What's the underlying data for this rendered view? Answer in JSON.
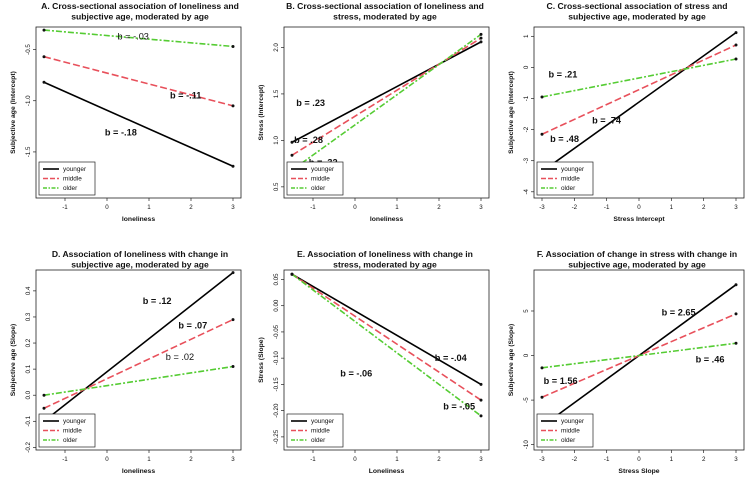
{
  "colors": {
    "younger": "#000000",
    "middle": "#e8505b",
    "older": "#55cc33"
  },
  "chart_data": [
    {
      "type": "line",
      "title": [
        "A. Cross-sectional association of loneliness and",
        "subjective age, moderated by age"
      ],
      "xlabel": "loneliness",
      "ylabel": "Subjective age (Intercept)",
      "xlim": [
        -1.5,
        3
      ],
      "ylim": [
        -1.95,
        -0.28
      ],
      "xticks": [
        "-1",
        "0",
        "1",
        "2",
        "3"
      ],
      "xtickvals": [
        -1,
        0,
        1,
        2,
        3
      ],
      "yticks": [
        "-0.5",
        "-1.0",
        "-1.5"
      ],
      "ytickvals": [
        -0.5,
        -1.0,
        -1.5
      ],
      "x": [
        -1.5,
        3
      ],
      "series": [
        {
          "name": "younger",
          "values": [
            -0.82,
            -1.64
          ]
        },
        {
          "name": "middle",
          "values": [
            -0.57,
            -1.05
          ]
        },
        {
          "name": "older",
          "values": [
            -0.31,
            -0.47
          ]
        }
      ],
      "annotations": [
        {
          "text": "b = -.03",
          "x": 0.25,
          "y": -0.4,
          "bold": false
        },
        {
          "text": "b = -.11",
          "x": 1.5,
          "y": -0.98,
          "bold": true
        },
        {
          "text": "b = -.18",
          "x": -0.05,
          "y": -1.34,
          "bold": true
        }
      ],
      "legend": [
        "younger",
        "middle",
        "older"
      ]
    },
    {
      "type": "line",
      "title": [
        "B. Cross-sectional association of loneliness and",
        "stress, moderated by age"
      ],
      "xlabel": "loneliness",
      "ylabel": "Stress (Intercept)",
      "xlim": [
        -1.5,
        3
      ],
      "ylim": [
        0.38,
        2.22
      ],
      "xticks": [
        "-1",
        "0",
        "1",
        "2",
        "3"
      ],
      "xtickvals": [
        -1,
        0,
        1,
        2,
        3
      ],
      "yticks": [
        "0.5",
        "1.0",
        "1.5",
        "2.0"
      ],
      "ytickvals": [
        0.5,
        1.0,
        1.5,
        2.0
      ],
      "x": [
        -1.5,
        3
      ],
      "series": [
        {
          "name": "younger",
          "values": [
            0.98,
            2.06
          ]
        },
        {
          "name": "middle",
          "values": [
            0.84,
            2.1
          ]
        },
        {
          "name": "older",
          "values": [
            0.68,
            2.14
          ]
        }
      ],
      "annotations": [
        {
          "text": "b = .23",
          "x": -1.4,
          "y": 1.37,
          "bold": true
        },
        {
          "text": "b = .28",
          "x": -1.45,
          "y": 0.97,
          "bold": true
        },
        {
          "text": "b = .32",
          "x": -1.1,
          "y": 0.73,
          "bold": true
        }
      ],
      "legend": [
        "younger",
        "middle",
        "older"
      ]
    },
    {
      "type": "line",
      "title": [
        "C. Cross-sectional association of stress and",
        "subjective age, moderated by age"
      ],
      "xlabel": "Stress Intercept",
      "ylabel": "Subjective age (Intercept)",
      "xlim": [
        -3,
        3
      ],
      "ylim": [
        -4.2,
        1.3
      ],
      "xticks": [
        "-3",
        "-2",
        "-1",
        "0",
        "1",
        "2",
        "3"
      ],
      "xtickvals": [
        -3,
        -2,
        -1,
        0,
        1,
        2,
        3
      ],
      "yticks": [
        "1",
        "0",
        "-1",
        "-2",
        "-3",
        "-4"
      ],
      "ytickvals": [
        1,
        0,
        -1,
        -2,
        -3,
        -4
      ],
      "x": [
        -3,
        3
      ],
      "series": [
        {
          "name": "younger",
          "values": [
            -3.35,
            1.12
          ]
        },
        {
          "name": "middle",
          "values": [
            -2.15,
            0.72
          ]
        },
        {
          "name": "older",
          "values": [
            -0.95,
            0.27
          ]
        }
      ],
      "annotations": [
        {
          "text": "b = .21",
          "x": -2.8,
          "y": -0.32,
          "bold": true
        },
        {
          "text": "b = .48",
          "x": -2.75,
          "y": -2.4,
          "bold": true
        },
        {
          "text": "b = .74",
          "x": -1.45,
          "y": -1.8,
          "bold": true
        }
      ],
      "legend": [
        "younger",
        "middle",
        "older"
      ]
    },
    {
      "type": "line",
      "title": [
        "D. Association of loneliness with change in",
        "subjective age, moderated by age"
      ],
      "xlabel": "loneliness",
      "ylabel": "Subjective age (Slope)",
      "xlim": [
        -1.5,
        3
      ],
      "ylim": [
        -0.21,
        0.48
      ],
      "xticks": [
        "-1",
        "0",
        "1",
        "2",
        "3"
      ],
      "xtickvals": [
        -1,
        0,
        1,
        2,
        3
      ],
      "yticks": [
        "-0.2",
        "-0.1",
        "0.0",
        "0.1",
        "0.2",
        "0.3",
        "0.4"
      ],
      "ytickvals": [
        -0.2,
        -0.1,
        0.0,
        0.1,
        0.2,
        0.3,
        0.4
      ],
      "x": [
        -1.5,
        3
      ],
      "series": [
        {
          "name": "younger",
          "values": [
            -0.1,
            0.47
          ]
        },
        {
          "name": "middle",
          "values": [
            -0.05,
            0.29
          ]
        },
        {
          "name": "older",
          "values": [
            0.0,
            0.11
          ]
        }
      ],
      "annotations": [
        {
          "text": "b = .12",
          "x": 0.85,
          "y": 0.35,
          "bold": true
        },
        {
          "text": "b = .07",
          "x": 1.7,
          "y": 0.255,
          "bold": true
        },
        {
          "text": "b = .02",
          "x": 1.4,
          "y": 0.135,
          "bold": false
        }
      ],
      "legend": [
        "younger",
        "middle",
        "older"
      ]
    },
    {
      "type": "line",
      "title": [
        "E. Association of loneliness with change in",
        "stress, moderated by age"
      ],
      "xlabel": "Loneliness",
      "ylabel": "Stress (Slope)",
      "xlim": [
        -1.5,
        3
      ],
      "ylim": [
        -0.275,
        0.068
      ],
      "xticks": [
        "-1",
        "0",
        "1",
        "2",
        "3"
      ],
      "xtickvals": [
        -1,
        0,
        1,
        2,
        3
      ],
      "yticks": [
        "0.05",
        "0.00",
        "-0.05",
        "-0.10",
        "-0.15",
        "-0.20",
        "-0.25"
      ],
      "ytickvals": [
        0.05,
        0.0,
        -0.05,
        -0.1,
        -0.15,
        -0.2,
        -0.25
      ],
      "x": [
        -1.5,
        3
      ],
      "series": [
        {
          "name": "younger",
          "values": [
            0.06,
            -0.15
          ]
        },
        {
          "name": "middle",
          "values": [
            0.06,
            -0.18
          ]
        },
        {
          "name": "older",
          "values": [
            0.06,
            -0.21
          ]
        }
      ],
      "annotations": [
        {
          "text": "b = -.04",
          "x": 1.9,
          "y": -0.105,
          "bold": true
        },
        {
          "text": "b = -.06",
          "x": -0.35,
          "y": -0.135,
          "bold": true
        },
        {
          "text": "b = -.05",
          "x": 2.1,
          "y": -0.198,
          "bold": true
        }
      ],
      "legend": [
        "younger",
        "middle",
        "older"
      ]
    },
    {
      "type": "line",
      "title": [
        "F. Association of change in stress with change in",
        "subjective age, moderated by age"
      ],
      "xlabel": "Stress Slope",
      "ylabel": "Subjective age (Slope)",
      "xlim": [
        -3,
        3
      ],
      "ylim": [
        -10.6,
        9.6
      ],
      "xticks": [
        "-3",
        "-2",
        "-1",
        "0",
        "1",
        "2",
        "3"
      ],
      "xtickvals": [
        -3,
        -2,
        -1,
        0,
        1,
        2,
        3
      ],
      "yticks": [
        "5",
        "0",
        "-5",
        "-10"
      ],
      "ytickvals": [
        5,
        0,
        -5,
        -10
      ],
      "x": [
        -3,
        3
      ],
      "series": [
        {
          "name": "younger",
          "values": [
            -7.95,
            7.95
          ]
        },
        {
          "name": "middle",
          "values": [
            -4.68,
            4.68
          ]
        },
        {
          "name": "older",
          "values": [
            -1.38,
            1.38
          ]
        }
      ],
      "annotations": [
        {
          "text": "b = 2.65",
          "x": 0.7,
          "y": 4.5,
          "bold": true
        },
        {
          "text": "b = 1.56",
          "x": -2.95,
          "y": -3.2,
          "bold": true
        },
        {
          "text": "b = .46",
          "x": 1.75,
          "y": -0.8,
          "bold": true
        }
      ],
      "legend": [
        "younger",
        "middle",
        "older"
      ]
    }
  ]
}
